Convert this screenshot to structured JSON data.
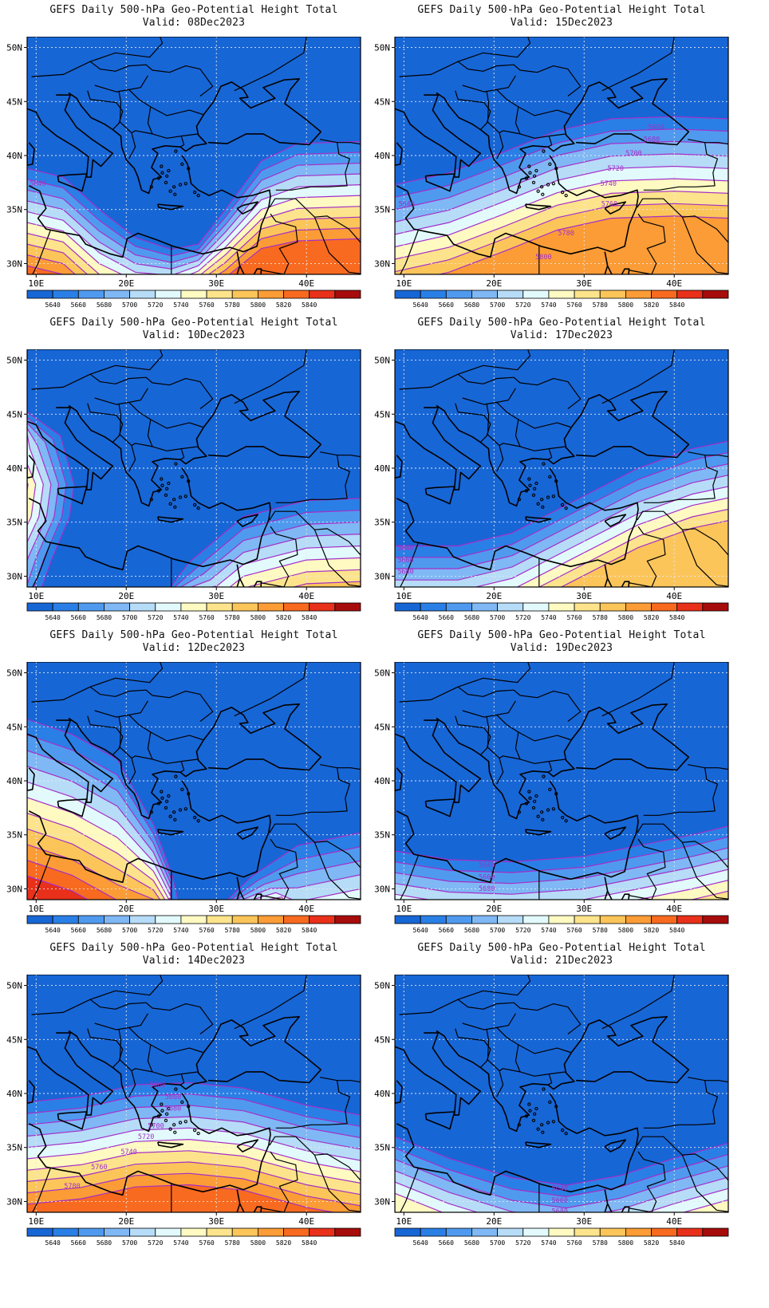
{
  "figure_title": "GEFS Daily 500-hPa Geo-Potential Height Total",
  "colorbar": {
    "labels": [
      "5640",
      "5660",
      "5680",
      "5700",
      "5720",
      "5740",
      "5760",
      "5780",
      "5800",
      "5820",
      "5840"
    ],
    "colors": [
      "#1766d6",
      "#2a7fe6",
      "#4f9aef",
      "#7fb8f5",
      "#b6dcf8",
      "#e2fafc",
      "#fefac2",
      "#fde48c",
      "#fcc55a",
      "#fb9c36",
      "#f86a1f",
      "#e8301a",
      "#a70c0c"
    ]
  },
  "axes": {
    "lon_labels": [
      "10E",
      "20E",
      "30E",
      "40E"
    ],
    "lat_labels": [
      "50N",
      "45N",
      "40N",
      "35N",
      "30N"
    ],
    "lon_range": [
      9,
      46
    ],
    "lat_range": [
      29,
      51
    ]
  },
  "map": {
    "base_fill": "#1766d6",
    "contour_color": "#a52fc8",
    "coast_color": "#000000",
    "projection": "lat-lon"
  },
  "panels": [
    {
      "title": "GEFS Daily 500-hPa Geo-Potential Height Total",
      "valid": "Valid: 08Dec2023",
      "contour_labels": [
        {
          "text": "5640",
          "lon": 10.2,
          "lat": 37.2
        }
      ]
    },
    {
      "title": "GEFS Daily 500-hPa Geo-Potential Height Total",
      "valid": "Valid: 15Dec2023",
      "contour_labels": [
        {
          "text": "5660",
          "lon": 38.0,
          "lat": 42.4
        },
        {
          "text": "5680",
          "lon": 37.5,
          "lat": 41.3
        },
        {
          "text": "5700",
          "lon": 35.5,
          "lat": 40.0
        },
        {
          "text": "5720",
          "lon": 33.5,
          "lat": 38.6
        },
        {
          "text": "5740",
          "lon": 32.7,
          "lat": 37.2
        },
        {
          "text": "5760",
          "lon": 32.8,
          "lat": 35.3
        },
        {
          "text": "5780",
          "lon": 28.0,
          "lat": 32.6
        },
        {
          "text": "5800",
          "lon": 25.5,
          "lat": 30.4
        },
        {
          "text": "5640",
          "lon": 10.3,
          "lat": 35.3
        }
      ]
    },
    {
      "title": "GEFS Daily 500-hPa Geo-Potential Height Total",
      "valid": "Valid: 10Dec2023",
      "contour_labels": []
    },
    {
      "title": "GEFS Daily 500-hPa Geo-Potential Height Total",
      "valid": "Valid: 17Dec2023",
      "contour_labels": [
        {
          "text": "5640",
          "lon": 10.2,
          "lat": 32.4
        },
        {
          "text": "5660",
          "lon": 10.2,
          "lat": 31.3
        },
        {
          "text": "5680",
          "lon": 10.2,
          "lat": 30.2
        }
      ]
    },
    {
      "title": "GEFS Daily 500-hPa Geo-Potential Height Total",
      "valid": "Valid: 12Dec2023",
      "contour_labels": []
    },
    {
      "title": "GEFS Daily 500-hPa Geo-Potential Height Total",
      "valid": "Valid: 19Dec2023",
      "contour_labels": [
        {
          "text": "5640",
          "lon": 19.2,
          "lat": 32.0
        },
        {
          "text": "5660",
          "lon": 19.2,
          "lat": 30.9
        },
        {
          "text": "5680",
          "lon": 19.2,
          "lat": 29.8
        }
      ]
    },
    {
      "title": "GEFS Daily 500-hPa Geo-Potential Height Total",
      "valid": "Valid: 14Dec2023",
      "contour_labels": [
        {
          "text": "5660",
          "lon": 23.5,
          "lat": 40.6
        },
        {
          "text": "5660",
          "lon": 25.2,
          "lat": 39.5
        },
        {
          "text": "5680",
          "lon": 25.2,
          "lat": 38.4
        },
        {
          "text": "5700",
          "lon": 23.3,
          "lat": 36.8
        },
        {
          "text": "5720",
          "lon": 22.2,
          "lat": 35.8
        },
        {
          "text": "5740",
          "lon": 20.3,
          "lat": 34.4
        },
        {
          "text": "5760",
          "lon": 17.0,
          "lat": 33.0
        },
        {
          "text": "5780",
          "lon": 14.0,
          "lat": 31.2
        }
      ]
    },
    {
      "title": "GEFS Daily 500-hPa Geo-Potential Height Total",
      "valid": "Valid: 21Dec2023",
      "contour_labels": [
        {
          "text": "5640",
          "lon": 27.3,
          "lat": 31.0
        },
        {
          "text": "5660",
          "lon": 27.3,
          "lat": 29.9
        },
        {
          "text": "5680",
          "lon": 27.3,
          "lat": 28.9
        }
      ]
    }
  ]
}
